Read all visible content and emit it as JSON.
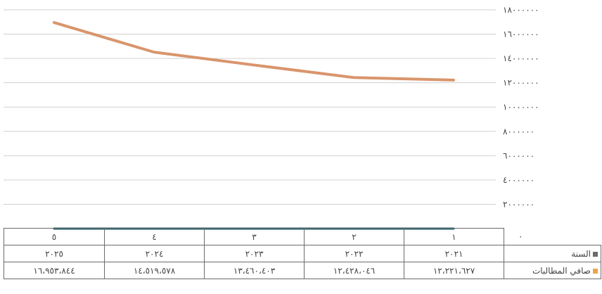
{
  "chart_data": {
    "type": "line",
    "categories": [
      "١",
      "٢",
      "٣",
      "٤",
      "٥"
    ],
    "x_labels_row": [
      "٢٠٢١",
      "٢٠٢٢",
      "٢٠٢٣",
      "٢٠٢٤",
      "٢٠٢٥"
    ],
    "series": [
      {
        "name": "صافي المطالبات",
        "values": [
          12221627,
          12428046,
          13460403,
          14519578,
          16953844
        ],
        "display_values": [
          "١٢،٢٢١،٦٢٧",
          "١٢،٤٢٨،٠٤٦",
          "١٣،٤٦٠،٤٠٣",
          "١٤،٥١٩،٥٧٨",
          "١٦،٩٥٣،٨٤٤"
        ],
        "color": "#d9956c"
      },
      {
        "name": "السنة",
        "values": [
          2021,
          2022,
          2023,
          2024,
          2025
        ],
        "color": "#1f5f6e"
      }
    ],
    "ylim": [
      0,
      18000000
    ],
    "y_ticks": [
      {
        "value": 0,
        "label": "٠"
      },
      {
        "value": 2000000,
        "label": "٢٠٠٠٠٠٠"
      },
      {
        "value": 4000000,
        "label": "٤٠٠٠٠٠٠"
      },
      {
        "value": 6000000,
        "label": "٦٠٠٠٠٠٠"
      },
      {
        "value": 8000000,
        "label": "٨٠٠٠٠٠٠"
      },
      {
        "value": 10000000,
        "label": "١٠٠٠٠٠٠٠"
      },
      {
        "value": 12000000,
        "label": "١٢٠٠٠٠٠٠"
      },
      {
        "value": 14000000,
        "label": "١٤٠٠٠٠٠٠"
      },
      {
        "value": 16000000,
        "label": "١٦٠٠٠٠٠٠"
      },
      {
        "value": 18000000,
        "label": "١٨٠٠٠٠٠٠"
      }
    ],
    "grid": true,
    "axis_position": "right",
    "legend": "data-table"
  },
  "colors": {
    "gridline": "#d0d0d0",
    "table_border": "#6b6b6b"
  }
}
